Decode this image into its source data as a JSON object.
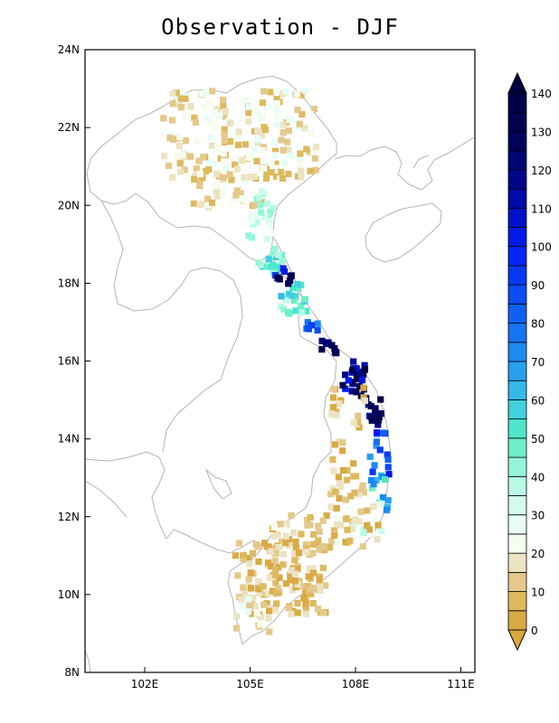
{
  "title": "Observation - DJF",
  "map": {
    "lon_range": [
      100.3,
      111.4
    ],
    "lat_range": [
      8,
      24
    ],
    "lon_ticks": [
      {
        "v": 102,
        "label": "102E"
      },
      {
        "v": 105,
        "label": "105E"
      },
      {
        "v": 108,
        "label": "108E"
      },
      {
        "v": 111,
        "label": "111E"
      }
    ],
    "lat_ticks": [
      {
        "v": 24,
        "label": "24N"
      },
      {
        "v": 22,
        "label": "22N"
      },
      {
        "v": 20,
        "label": "20N"
      },
      {
        "v": 18,
        "label": "18N"
      },
      {
        "v": 16,
        "label": "16N"
      },
      {
        "v": 14,
        "label": "14N"
      },
      {
        "v": 12,
        "label": "12N"
      },
      {
        "v": 10,
        "label": "10N"
      },
      {
        "v": 8,
        "label": "8N"
      }
    ]
  },
  "colorbar": {
    "labels": [
      "0",
      "10",
      "20",
      "30",
      "40",
      "50",
      "60",
      "70",
      "80",
      "90",
      "100",
      "110",
      "120",
      "130",
      "140"
    ],
    "colors": [
      "#d9aa45",
      "#ddba60",
      "#e4c98b",
      "#ece3c2",
      "#f6fcf0",
      "#e7fdf6",
      "#d4faee",
      "#b8fae6",
      "#96f5d8",
      "#6df0c8",
      "#4de6cc",
      "#40d0de",
      "#34b8e8",
      "#27a1ee",
      "#1c8af2",
      "#1673f2",
      "#1060f4",
      "#0b4cf6",
      "#0838f7",
      "#0326f6",
      "#001ae8",
      "#0010c8",
      "#000aa8",
      "#00068a",
      "#000570",
      "#00035a",
      "#000250",
      "#000248"
    ],
    "under_color": "#d9a83c",
    "over_color": "#000240"
  }
}
